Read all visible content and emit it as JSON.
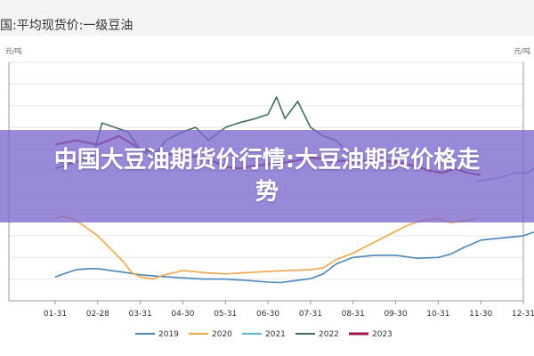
{
  "header": {
    "title": "国:平均现货价:一级豆油",
    "unit_left": "元/吨",
    "unit_right": "元/吨"
  },
  "banner": {
    "text": "中国大豆油期货价行情:大豆油期货价格走势"
  },
  "colors": {
    "2019": "#4a86b8",
    "2020": "#f2a54a",
    "2021": "#5cb8c8",
    "2022": "#3f6e5e",
    "2023": "#a3154a"
  },
  "chart_data": {
    "type": "line",
    "title": "国:平均现货价:一级豆油",
    "ylabel": "元/吨",
    "x_ticks": [
      "01-31",
      "02-28",
      "03-31",
      "04-30",
      "05-31",
      "06-30",
      "07-31",
      "08-31",
      "09-30",
      "10-31",
      "11-30",
      "12-31"
    ],
    "legend_position": "bottom",
    "grid": true,
    "series": [
      {
        "name": "2019",
        "points": [
          [
            0,
            5550
          ],
          [
            0.2,
            5620
          ],
          [
            0.5,
            5720
          ],
          [
            0.8,
            5740
          ],
          [
            1.0,
            5740
          ],
          [
            1.3,
            5700
          ],
          [
            1.6,
            5660
          ],
          [
            2.0,
            5600
          ],
          [
            2.5,
            5560
          ],
          [
            3.0,
            5530
          ],
          [
            3.5,
            5500
          ],
          [
            4.0,
            5500
          ],
          [
            4.5,
            5470
          ],
          [
            5.0,
            5430
          ],
          [
            5.3,
            5420
          ],
          [
            5.6,
            5460
          ],
          [
            6.0,
            5510
          ],
          [
            6.3,
            5620
          ],
          [
            6.6,
            5850
          ],
          [
            7.0,
            6000
          ],
          [
            7.5,
            6050
          ],
          [
            8.0,
            6050
          ],
          [
            8.5,
            5980
          ],
          [
            9.0,
            6000
          ],
          [
            9.3,
            6080
          ],
          [
            9.6,
            6230
          ],
          [
            10.0,
            6400
          ],
          [
            10.5,
            6450
          ],
          [
            10.8,
            6480
          ],
          [
            11.0,
            6500
          ],
          [
            11.3,
            6600
          ],
          [
            11.6,
            6700
          ],
          [
            11.9,
            6750
          ]
        ]
      },
      {
        "name": "2020",
        "points": [
          [
            0,
            6900
          ],
          [
            0.2,
            6950
          ],
          [
            0.5,
            6850
          ],
          [
            1.0,
            6500
          ],
          [
            1.3,
            6200
          ],
          [
            1.6,
            5900
          ],
          [
            1.8,
            5650
          ],
          [
            2.0,
            5550
          ],
          [
            2.3,
            5500
          ],
          [
            2.5,
            5580
          ],
          [
            2.8,
            5650
          ],
          [
            3.0,
            5700
          ],
          [
            3.5,
            5650
          ],
          [
            4.0,
            5620
          ],
          [
            4.5,
            5650
          ],
          [
            5.0,
            5680
          ],
          [
            5.5,
            5700
          ],
          [
            6.0,
            5720
          ],
          [
            6.3,
            5760
          ],
          [
            6.6,
            5950
          ],
          [
            7.0,
            6100
          ],
          [
            7.5,
            6350
          ],
          [
            8.0,
            6600
          ],
          [
            8.3,
            6750
          ],
          [
            8.6,
            6850
          ],
          [
            9.0,
            6900
          ],
          [
            9.3,
            6800
          ],
          [
            9.6,
            6850
          ],
          [
            9.9,
            6900
          ]
        ]
      },
      {
        "name": "2022",
        "points": [
          [
            0,
            8050
          ],
          [
            0.5,
            8200
          ],
          [
            0.9,
            8350
          ],
          [
            1.1,
            9100
          ],
          [
            1.4,
            9000
          ],
          [
            1.7,
            8900
          ],
          [
            2.0,
            8500
          ],
          [
            2.3,
            8300
          ],
          [
            2.6,
            8700
          ],
          [
            3.0,
            8900
          ],
          [
            3.3,
            9000
          ],
          [
            3.6,
            8700
          ],
          [
            4.0,
            9000
          ],
          [
            4.3,
            9100
          ],
          [
            4.7,
            9200
          ],
          [
            5.0,
            9300
          ],
          [
            5.2,
            9700
          ],
          [
            5.4,
            9200
          ],
          [
            5.7,
            9600
          ],
          [
            6.0,
            9000
          ],
          [
            6.3,
            8800
          ],
          [
            6.6,
            8700
          ],
          [
            6.9,
            8400
          ]
        ]
      },
      {
        "name": "2023",
        "points": [
          [
            0,
            8600
          ],
          [
            0.5,
            8700
          ],
          [
            1.0,
            8600
          ],
          [
            1.5,
            8800
          ],
          [
            2.0,
            8500
          ],
          [
            2.5,
            8400
          ],
          [
            3.0,
            8350
          ],
          [
            3.5,
            8300
          ],
          [
            4.0,
            8100
          ],
          [
            4.3,
            8050
          ],
          [
            4.6,
            8100
          ],
          [
            5.0,
            8150
          ],
          [
            5.5,
            8200
          ],
          [
            6.0,
            8300
          ],
          [
            6.5,
            8250
          ],
          [
            7.0,
            8200
          ],
          [
            7.5,
            8250
          ],
          [
            8.0,
            8200
          ],
          [
            8.5,
            8100
          ],
          [
            8.8,
            8000
          ],
          [
            9.1,
            7950
          ],
          [
            9.4,
            8050
          ],
          [
            9.7,
            7950
          ],
          [
            10.0,
            7900
          ]
        ]
      },
      {
        "name": "2021",
        "points": [
          [
            9.9,
            7750
          ],
          [
            10.2,
            7800
          ],
          [
            10.5,
            7850
          ],
          [
            10.8,
            7950
          ],
          [
            11.1,
            7950
          ],
          [
            11.4,
            8150
          ],
          [
            11.7,
            8250
          ],
          [
            11.9,
            8300
          ]
        ]
      }
    ]
  }
}
